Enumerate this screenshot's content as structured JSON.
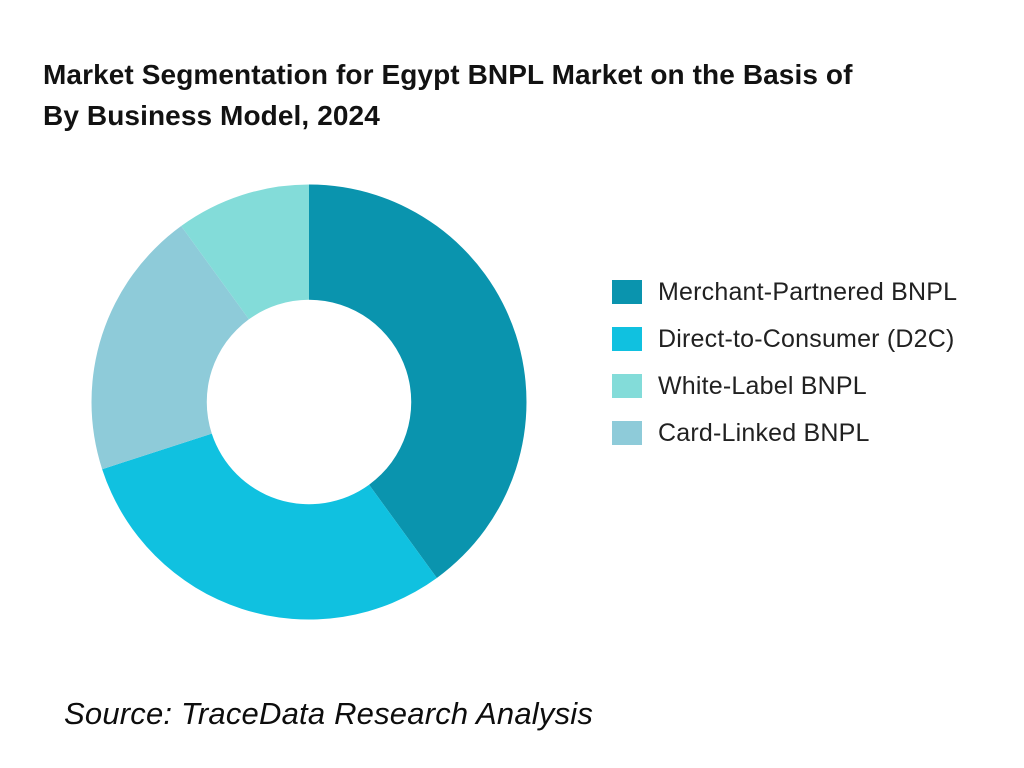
{
  "title": {
    "line1": "Market Segmentation for Egypt BNPL Market on the Basis of",
    "line2": "By Business Model, 2024"
  },
  "source": "Source: TraceData Research Analysis",
  "chart_data": {
    "type": "pie",
    "subtype": "donut",
    "title": "Market Segmentation for Egypt BNPL Market on the Basis of By Business Model, 2024",
    "values_unit": "percent share (estimated from arc angles)",
    "start_angle_deg": 0,
    "direction": "clockwise",
    "inner_radius_ratio": 0.47,
    "grid": false,
    "legend_position": "right",
    "slices": [
      {
        "label": "Merchant-Partnered BNPL",
        "value": 40,
        "color": "#0A94AE"
      },
      {
        "label": "Direct-to-Consumer (D2C)",
        "value": 30,
        "color": "#10C1E0"
      },
      {
        "label": "Card-Linked BNPL",
        "value": 20,
        "color": "#8ECBD9"
      },
      {
        "label": "White-Label BNPL",
        "value": 10,
        "color": "#83DCD9"
      }
    ],
    "legend": [
      {
        "label": "Merchant-Partnered BNPL",
        "color": "#0A94AE"
      },
      {
        "label": "Direct-to-Consumer (D2C)",
        "color": "#10C1E0"
      },
      {
        "label": "White-Label BNPL",
        "color": "#83DCD9"
      },
      {
        "label": "Card-Linked BNPL",
        "color": "#8ECBD9"
      }
    ]
  }
}
